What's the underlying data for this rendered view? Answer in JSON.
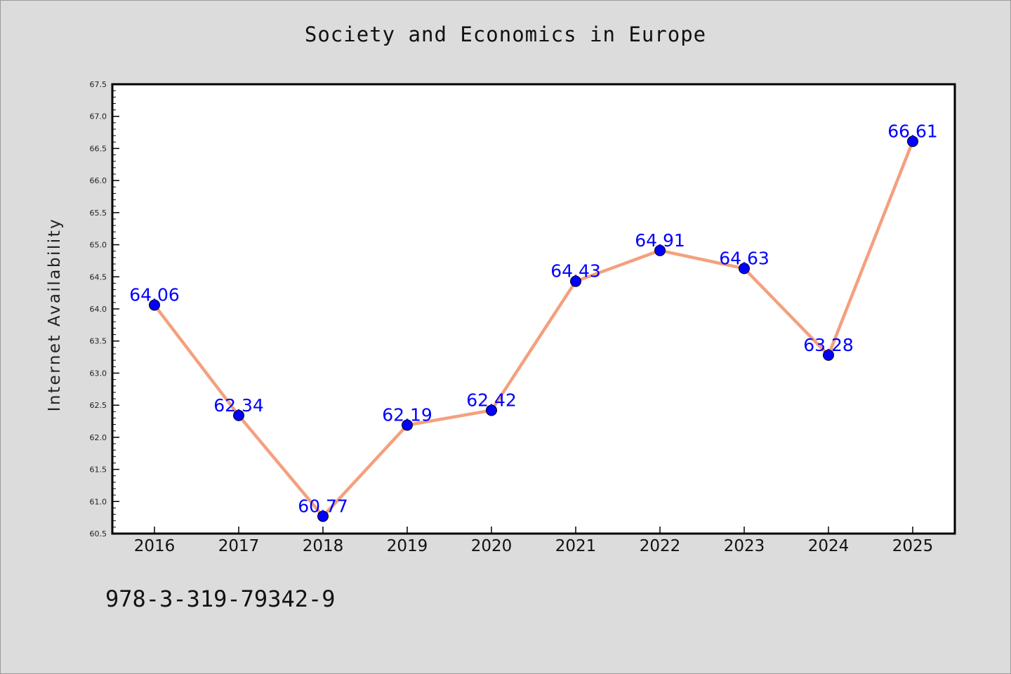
{
  "chart_data": {
    "type": "line",
    "title": "Society and Economics in Europe",
    "xlabel": "",
    "ylabel": "Internet Availability",
    "categories": [
      "2016",
      "2017",
      "2018",
      "2019",
      "2020",
      "2021",
      "2022",
      "2023",
      "2024",
      "2025"
    ],
    "series": [
      {
        "values": [
          64.06,
          62.34,
          60.77,
          62.19,
          62.42,
          64.43,
          64.91,
          64.63,
          63.28,
          66.61
        ]
      }
    ],
    "data_labels": [
      "64.06",
      "62.34",
      "60.77",
      "62.19",
      "62.42",
      "64.43",
      "64.91",
      "64.63",
      "63.28",
      "66.61"
    ],
    "ylim": [
      60.5,
      67.5
    ],
    "yticks": [
      "60.5",
      "61.0",
      "61.5",
      "62.0",
      "62.5",
      "63.0",
      "63.5",
      "64.0",
      "64.5",
      "65.0",
      "65.5",
      "66.0",
      "66.5",
      "67.0",
      "67.5"
    ],
    "grid": false,
    "colors": {
      "line": "#f4a07e",
      "marker": "#0000ff",
      "label": "#0000ff",
      "plot_bg": "#ffffff",
      "page_bg": "#dcdcdc"
    }
  },
  "footnote": "978-3-319-79342-9"
}
